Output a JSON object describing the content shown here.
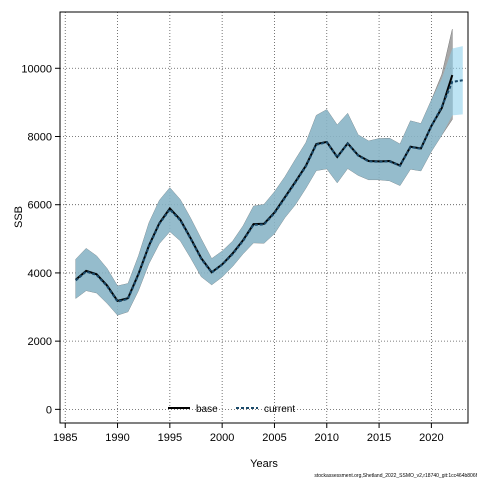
{
  "chart_data": {
    "type": "line",
    "xlabel": "Years",
    "ylabel": "SSB",
    "xlim": [
      1984.5,
      2023.5
    ],
    "ylim": [
      -400,
      11650
    ],
    "x_ticks": [
      1985,
      1990,
      1995,
      2000,
      2005,
      2010,
      2015,
      2020
    ],
    "y_ticks": [
      0,
      2000,
      4000,
      6000,
      8000,
      10000
    ],
    "grid": true,
    "legend_position": "bottom-center",
    "legend": [
      {
        "label": "base",
        "style": "solid",
        "color": "#000000"
      },
      {
        "label": "current",
        "style": "dashed",
        "color": "#1a4a6a"
      }
    ],
    "footnote": "stockassessment.org,Shetland_2022_SSMO_v2,r18740_git:1cc464b806f",
    "series": [
      {
        "name": "base",
        "color": "#000000",
        "band_color": "#8a8a8a",
        "x": [
          1986,
          1987,
          1988,
          1989,
          1990,
          1991,
          1992,
          1993,
          1994,
          1995,
          1996,
          1997,
          1998,
          1999,
          2000,
          2001,
          2002,
          2003,
          2004,
          2005,
          2006,
          2007,
          2008,
          2009,
          2010,
          2011,
          2012,
          2013,
          2014,
          2015,
          2016,
          2017,
          2018,
          2019,
          2020,
          2021,
          2022
        ],
        "values": [
          3800,
          4060,
          3960,
          3630,
          3180,
          3260,
          3970,
          4800,
          5460,
          5890,
          5560,
          5010,
          4430,
          4020,
          4250,
          4570,
          4960,
          5430,
          5440,
          5770,
          6220,
          6670,
          7140,
          7780,
          7840,
          7400,
          7800,
          7450,
          7280,
          7270,
          7280,
          7150,
          7700,
          7650,
          8310,
          8840,
          9800
        ],
        "lower": [
          3250,
          3480,
          3410,
          3110,
          2760,
          2860,
          3480,
          4270,
          4860,
          5210,
          4940,
          4430,
          3890,
          3650,
          3880,
          4190,
          4560,
          4880,
          4870,
          5150,
          5620,
          6000,
          6480,
          7000,
          7050,
          6640,
          7060,
          6860,
          6730,
          6730,
          6700,
          6560,
          7040,
          6990,
          7560,
          8040,
          8500
        ],
        "upper": [
          4400,
          4720,
          4500,
          4130,
          3620,
          3690,
          4500,
          5470,
          6130,
          6500,
          6150,
          5600,
          5000,
          4420,
          4640,
          4930,
          5380,
          5960,
          6010,
          6380,
          6820,
          7330,
          7820,
          8620,
          8790,
          8340,
          8680,
          8050,
          7870,
          7940,
          7950,
          7780,
          8460,
          8380,
          9070,
          9820,
          11150
        ]
      },
      {
        "name": "current",
        "color": "#1a4a6a",
        "band_color": "#87ceeb",
        "x": [
          1986,
          1987,
          1988,
          1989,
          1990,
          1991,
          1992,
          1993,
          1994,
          1995,
          1996,
          1997,
          1998,
          1999,
          2000,
          2001,
          2002,
          2003,
          2004,
          2005,
          2006,
          2007,
          2008,
          2009,
          2010,
          2011,
          2012,
          2013,
          2014,
          2015,
          2016,
          2017,
          2018,
          2019,
          2020,
          2021,
          2022,
          2023
        ],
        "values": [
          3780,
          4040,
          3940,
          3610,
          3160,
          3240,
          3950,
          4780,
          5440,
          5860,
          5540,
          4990,
          4410,
          4010,
          4240,
          4550,
          4940,
          5410,
          5420,
          5750,
          6200,
          6650,
          7120,
          7760,
          7830,
          7390,
          7790,
          7440,
          7270,
          7260,
          7270,
          7140,
          7690,
          7640,
          8300,
          8880,
          9600,
          9650
        ],
        "lower": [
          3250,
          3480,
          3410,
          3110,
          2760,
          2860,
          3480,
          4270,
          4860,
          5210,
          4940,
          4430,
          3890,
          3650,
          3880,
          4190,
          4560,
          4880,
          4870,
          5150,
          5620,
          6000,
          6480,
          7000,
          7050,
          6640,
          7060,
          6860,
          6730,
          6730,
          6700,
          6560,
          7040,
          6990,
          7560,
          8040,
          8620,
          8650
        ],
        "upper": [
          4400,
          4720,
          4500,
          4130,
          3620,
          3690,
          4500,
          5470,
          6130,
          6500,
          6150,
          5600,
          5000,
          4420,
          4640,
          4930,
          5380,
          5960,
          6010,
          6380,
          6820,
          7330,
          7820,
          8620,
          8790,
          8340,
          8680,
          8050,
          7870,
          7940,
          7950,
          7780,
          8460,
          8380,
          9070,
          9700,
          10580,
          10650
        ]
      }
    ]
  }
}
